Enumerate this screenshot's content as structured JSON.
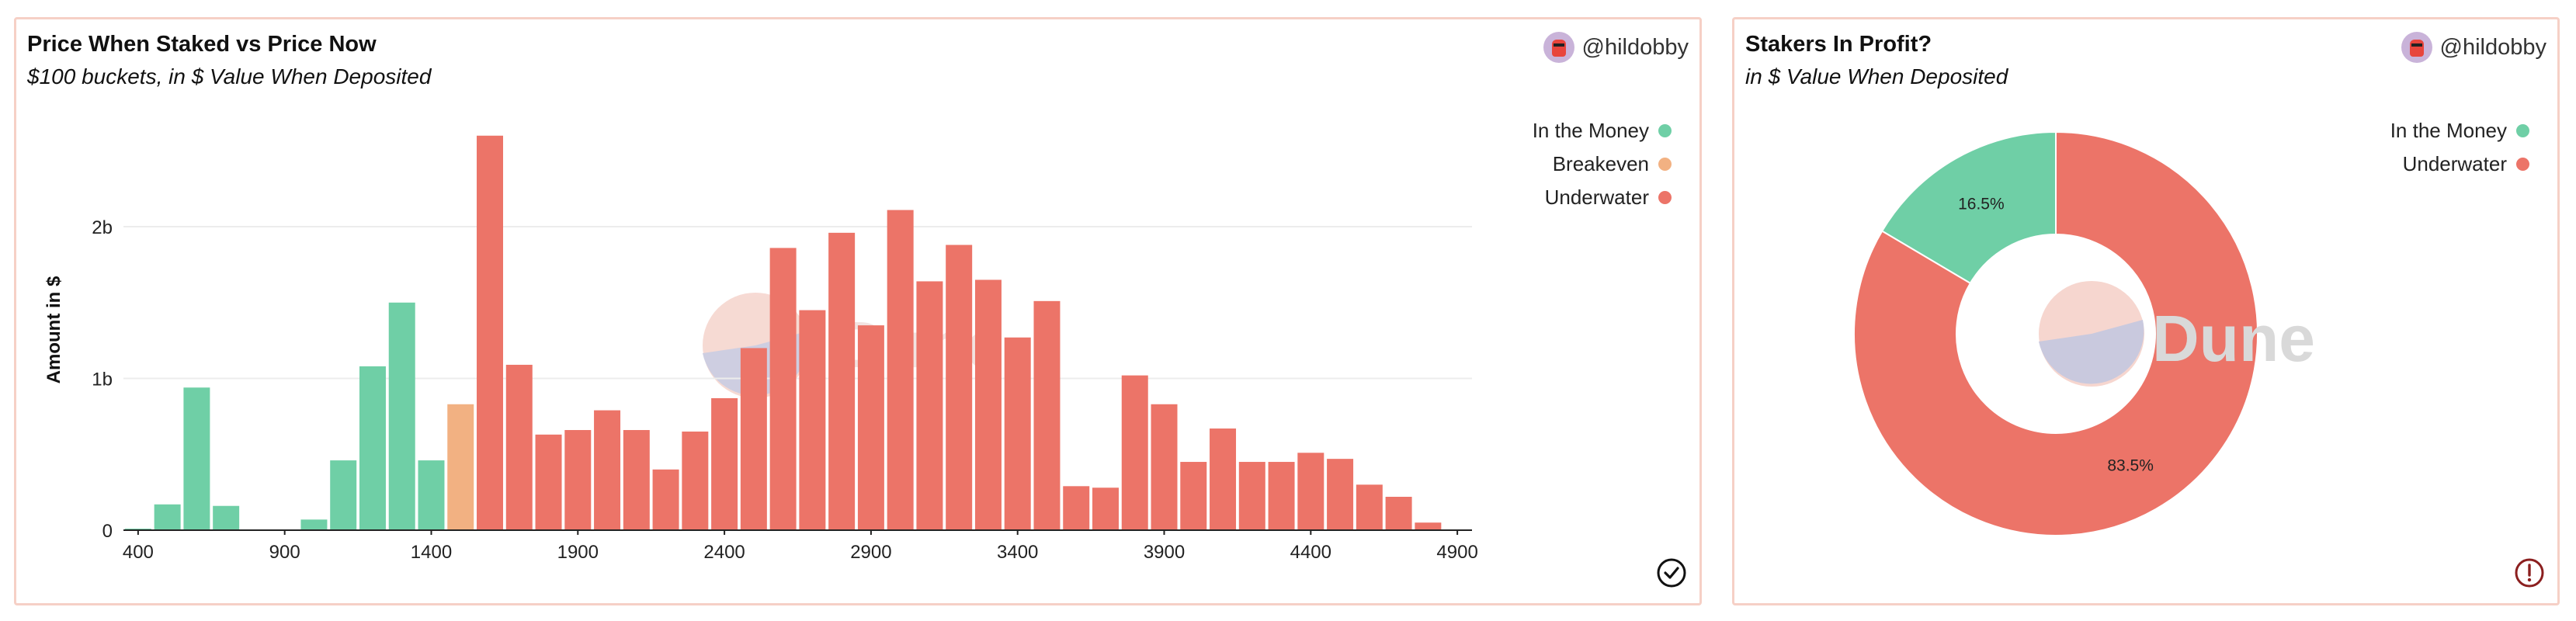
{
  "left_panel": {
    "title": "Price When Staked vs Price Now",
    "subtitle": "$100 buckets, in $ Value When Deposited",
    "user": "@hildobby",
    "status_icon": "check-circle-icon"
  },
  "right_panel": {
    "title": "Stakers In Profit?",
    "subtitle": "in $ Value When Deposited",
    "user": "@hildobby",
    "status_icon": "exclamation-circle-icon"
  },
  "colors": {
    "in_the_money": "#6fcfa6",
    "breakeven": "#f2b182",
    "underwater": "#ec7468",
    "border": "#f6d0c6"
  },
  "watermark": "Dune",
  "chart_data": [
    {
      "type": "bar",
      "title": "Price When Staked vs Price Now",
      "ylabel": "Amount in $",
      "xlabel": "",
      "xlim": [
        350,
        4950
      ],
      "ylim": [
        0,
        2650000000
      ],
      "xticks": [
        400,
        900,
        1400,
        1900,
        2400,
        2900,
        3400,
        3900,
        4400,
        4900
      ],
      "yticks": [
        {
          "value": 0,
          "label": "0"
        },
        {
          "value": 1000000000,
          "label": "1b"
        },
        {
          "value": 2000000000,
          "label": "2b"
        }
      ],
      "grid": true,
      "legend_position": "top-right",
      "series": [
        {
          "name": "In the Money",
          "color": "#6fcfa6",
          "x": [
            400,
            500,
            600,
            700,
            800,
            900,
            1000,
            1100,
            1200,
            1300,
            1400
          ],
          "values": [
            10000000,
            170000000,
            940000000,
            160000000,
            3000000,
            0,
            70000000,
            460000000,
            1080000000,
            1500000000,
            460000000
          ]
        },
        {
          "name": "Breakeven",
          "color": "#f2b182",
          "x": [
            1500
          ],
          "values": [
            830000000
          ]
        },
        {
          "name": "Underwater",
          "color": "#ec7468",
          "x": [
            1600,
            1700,
            1800,
            1900,
            2000,
            2100,
            2200,
            2300,
            2400,
            2500,
            2600,
            2700,
            2800,
            2900,
            3000,
            3100,
            3200,
            3300,
            3400,
            3500,
            3600,
            3700,
            3800,
            3900,
            4000,
            4100,
            4200,
            4300,
            4400,
            4500,
            4600,
            4700,
            4800
          ],
          "values": [
            2600000000,
            1090000000,
            630000000,
            660000000,
            790000000,
            660000000,
            400000000,
            650000000,
            870000000,
            1200000000,
            1860000000,
            1450000000,
            1960000000,
            1350000000,
            2110000000,
            1640000000,
            1880000000,
            1650000000,
            1270000000,
            1510000000,
            290000000,
            280000000,
            1020000000,
            830000000,
            450000000,
            670000000,
            450000000,
            450000000,
            510000000,
            470000000,
            300000000,
            220000000,
            50000000
          ]
        }
      ]
    },
    {
      "type": "pie",
      "title": "Stakers In Profit?",
      "donut": true,
      "legend_position": "top-right",
      "slices": [
        {
          "label": "In the Money",
          "value": 16.5,
          "display": "16.5%",
          "color": "#6fcfa6"
        },
        {
          "label": "Underwater",
          "value": 83.5,
          "display": "83.5%",
          "color": "#ec7468"
        }
      ]
    }
  ]
}
